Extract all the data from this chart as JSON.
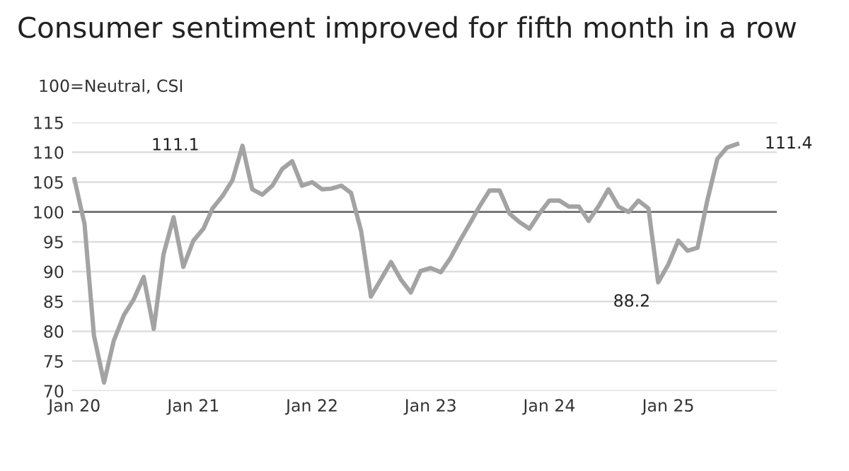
{
  "chart_data": {
    "type": "line",
    "title": "Consumer sentiment improved for fifth month in a row",
    "ylabel": "100=Neutral, CSI",
    "x": [
      "2020-01",
      "2020-02",
      "2020-03",
      "2020-04",
      "2020-05",
      "2020-06",
      "2020-07",
      "2020-08",
      "2020-09",
      "2020-10",
      "2020-11",
      "2020-12",
      "2021-01",
      "2021-02",
      "2021-03",
      "2021-04",
      "2021-05",
      "2021-06",
      "2021-07",
      "2021-08",
      "2021-09",
      "2021-10",
      "2021-11",
      "2021-12",
      "2022-01",
      "2022-02",
      "2022-03",
      "2022-04",
      "2022-05",
      "2022-06",
      "2022-07",
      "2022-08",
      "2022-09",
      "2022-10",
      "2022-11",
      "2022-12",
      "2023-01",
      "2023-02",
      "2023-03",
      "2023-04",
      "2023-05",
      "2023-06",
      "2023-07",
      "2023-08",
      "2023-09",
      "2023-10",
      "2023-11",
      "2023-12",
      "2024-01",
      "2024-02",
      "2024-03",
      "2024-04",
      "2024-05",
      "2024-06",
      "2024-07",
      "2024-08",
      "2024-09",
      "2024-10",
      "2024-11",
      "2024-12",
      "2025-01",
      "2025-02",
      "2025-03",
      "2025-04",
      "2025-05",
      "2025-06",
      "2025-07",
      "2025-08"
    ],
    "series": [
      {
        "color": "#a3a3a3",
        "values": [
          105.5,
          98,
          79.3,
          71.4,
          78.4,
          82.7,
          85.3,
          89.1,
          80.4,
          92.9,
          99.1,
          90.8,
          95.2,
          97.2,
          100.6,
          102.7,
          105.3,
          111.1,
          103.8,
          102.9,
          104.4,
          107.2,
          108.5,
          104.4,
          105,
          103.8,
          103.9,
          104.4,
          103.2,
          96.8,
          85.8,
          88.7,
          91.6,
          88.7,
          86.5,
          90.1,
          90.6,
          89.9,
          92.1,
          95.2,
          98,
          101,
          103.6,
          103.6,
          99.7,
          98.3,
          97.2,
          99.7,
          101.9,
          101.9,
          100.9,
          100.9,
          98.5,
          101,
          103.8,
          100.9,
          100,
          101.9,
          100.6,
          88.2,
          91.2,
          95.2,
          93.5,
          94,
          101.9,
          108.9,
          110.8,
          111.4
        ]
      }
    ],
    "xlim": [
      "2019-12-25",
      "2025-12-01"
    ],
    "xticks": [
      {
        "value": "2020-01",
        "label": "Jan 20"
      },
      {
        "value": "2021-01",
        "label": "Jan 21"
      },
      {
        "value": "2022-01",
        "label": "Jan 22"
      },
      {
        "value": "2023-01",
        "label": "Jan 23"
      },
      {
        "value": "2024-01",
        "label": "Jan 24"
      },
      {
        "value": "2025-01",
        "label": "Jan 25"
      }
    ],
    "ylim": [
      70,
      115
    ],
    "yticks": [
      70,
      75,
      80,
      85,
      90,
      95,
      100,
      105,
      110,
      115
    ],
    "grid": "y",
    "legend": false,
    "marker": "none",
    "line_style": "solid",
    "ref_lines": [
      {
        "axis": "y",
        "value": 100,
        "color": "#6e6e6e"
      }
    ],
    "annotations": [
      {
        "text": "111.1",
        "x": "2021-06",
        "y": 111.1
      },
      {
        "text": "88.2",
        "x": "2024-12",
        "y": 88.2
      },
      {
        "text": "111.4",
        "x": "2025-08",
        "y": 111.4
      }
    ]
  }
}
